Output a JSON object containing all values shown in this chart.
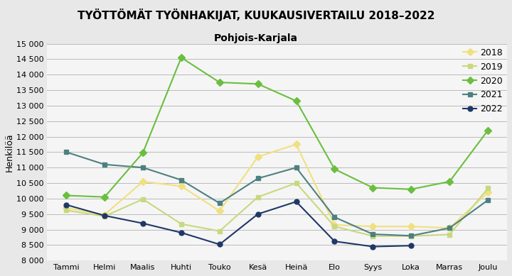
{
  "title": "TYÖTTÖMÄT TYÖNHAKIJAT, KUUKAUSIVERTAILU 2018–2022",
  "subtitle": "Pohjois-Karjala",
  "ylabel": "Henkilöä",
  "months": [
    "Tammi",
    "Helmi",
    "Maalis",
    "Huhti",
    "Touko",
    "Kesä",
    "Heinä",
    "Elo",
    "Syys",
    "Loka",
    "Marras",
    "Joulu"
  ],
  "series": {
    "2018": {
      "values": [
        9700,
        9480,
        10550,
        10400,
        9600,
        11350,
        11750,
        9150,
        9100,
        9100,
        9050,
        10200
      ],
      "color": "#f0e080",
      "marker": "D",
      "markersize": 5,
      "zorder": 3
    },
    "2019": {
      "values": [
        9620,
        9430,
        9980,
        9180,
        8950,
        10050,
        10500,
        9100,
        8790,
        8790,
        8840,
        10330
      ],
      "color": "#c8d87e",
      "marker": "s",
      "markersize": 5,
      "zorder": 3
    },
    "2020": {
      "values": [
        10100,
        10050,
        11480,
        14550,
        13750,
        13700,
        13150,
        10950,
        10350,
        10300,
        10550,
        12200
      ],
      "color": "#6abf3e",
      "marker": "D",
      "markersize": 5,
      "zorder": 4
    },
    "2021": {
      "values": [
        11500,
        11100,
        11000,
        10600,
        9850,
        10650,
        11000,
        9400,
        8850,
        8800,
        9050,
        9950
      ],
      "color": "#4d8080",
      "marker": "s",
      "markersize": 5,
      "zorder": 3
    },
    "2022": {
      "values": [
        9800,
        9450,
        9200,
        8900,
        8520,
        9500,
        9900,
        8620,
        8450,
        8480,
        null,
        null
      ],
      "color": "#1f3868",
      "marker": "o",
      "markersize": 5,
      "zorder": 5
    }
  },
  "ylim": [
    8000,
    15000
  ],
  "yticks": [
    8000,
    8500,
    9000,
    9500,
    10000,
    10500,
    11000,
    11500,
    12000,
    12500,
    13000,
    13500,
    14000,
    14500,
    15000
  ],
  "background_color": "#e8e8e8",
  "plot_bg_color": "#f5f5f5",
  "title_fontsize": 11,
  "subtitle_fontsize": 10,
  "tick_fontsize": 8,
  "ylabel_fontsize": 9,
  "legend_fontsize": 9,
  "legend_order": [
    "2018",
    "2019",
    "2020",
    "2021",
    "2022"
  ]
}
